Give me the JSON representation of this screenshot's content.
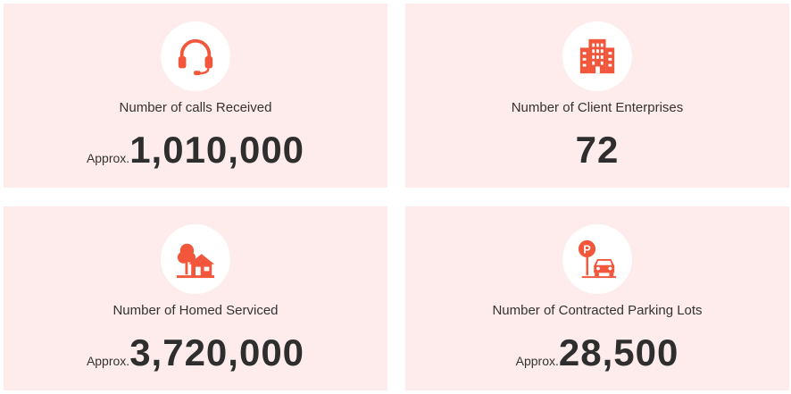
{
  "accent_color": "#f2563b",
  "card_background": "#fdeceb",
  "stats": [
    {
      "icon": "headset-icon",
      "label": "Number of calls Received",
      "prefix": "Approx.",
      "value": "1,010,000"
    },
    {
      "icon": "office-building-icon",
      "label": "Number of Client Enterprises",
      "prefix": "",
      "value": "72"
    },
    {
      "icon": "house-icon",
      "label": "Number of Homed Serviced",
      "prefix": "Approx.",
      "value": "3,720,000"
    },
    {
      "icon": "parking-car-icon",
      "label": "Number of Contracted Parking Lots",
      "prefix": "Approx.",
      "value": "28,500"
    }
  ]
}
